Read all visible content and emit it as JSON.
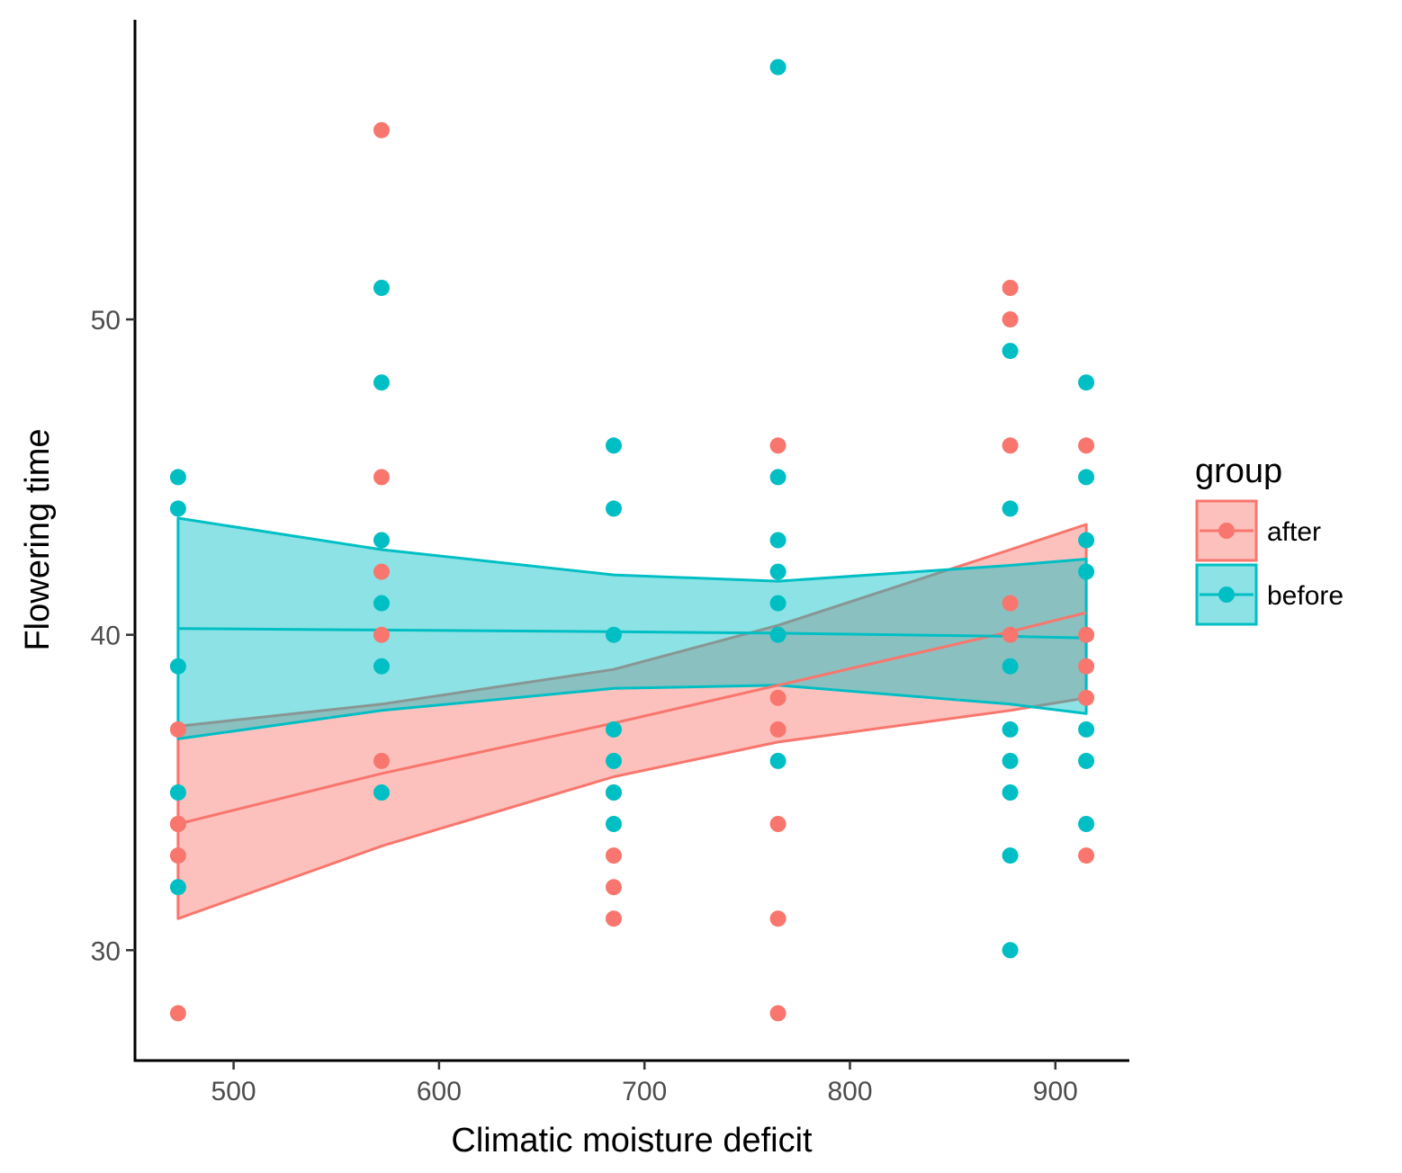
{
  "chart_data": {
    "type": "scatter",
    "title": "",
    "xlabel": "Climatic moisture deficit",
    "ylabel": "Flowering time",
    "xlim": [
      452,
      936
    ],
    "ylim": [
      26.5,
      59.5
    ],
    "x_ticks": [
      500,
      600,
      700,
      800,
      900
    ],
    "y_ticks": [
      30,
      40,
      50
    ],
    "legend": {
      "title": "group",
      "position": "right",
      "entries": [
        "after",
        "before"
      ]
    },
    "series": [
      {
        "name": "after",
        "color": "#F8766D",
        "points": [
          [
            473,
            37
          ],
          [
            473,
            34
          ],
          [
            473,
            34
          ],
          [
            473,
            33
          ],
          [
            473,
            28
          ],
          [
            572,
            56
          ],
          [
            572,
            45
          ],
          [
            572,
            42
          ],
          [
            572,
            40
          ],
          [
            572,
            36
          ],
          [
            685,
            35
          ],
          [
            685,
            33
          ],
          [
            685,
            32
          ],
          [
            685,
            31
          ],
          [
            765,
            46
          ],
          [
            765,
            38
          ],
          [
            765,
            37
          ],
          [
            765,
            34
          ],
          [
            765,
            31
          ],
          [
            765,
            28
          ],
          [
            878,
            51
          ],
          [
            878,
            50
          ],
          [
            878,
            46
          ],
          [
            878,
            41
          ],
          [
            878,
            40
          ],
          [
            915,
            46
          ],
          [
            915,
            40
          ],
          [
            915,
            39
          ],
          [
            915,
            38
          ],
          [
            915,
            33
          ]
        ],
        "fit": [
          [
            473,
            34.0
          ],
          [
            572,
            35.6
          ],
          [
            685,
            37.2
          ],
          [
            765,
            38.4
          ],
          [
            878,
            40.1
          ],
          [
            915,
            40.7
          ]
        ],
        "ribbon_upper": [
          [
            473,
            37.1
          ],
          [
            572,
            37.8
          ],
          [
            685,
            38.9
          ],
          [
            765,
            40.3
          ],
          [
            878,
            42.7
          ],
          [
            915,
            43.5
          ]
        ],
        "ribbon_lower": [
          [
            473,
            31.0
          ],
          [
            572,
            33.3
          ],
          [
            685,
            35.5
          ],
          [
            765,
            36.6
          ],
          [
            878,
            37.6
          ],
          [
            915,
            38.0
          ]
        ]
      },
      {
        "name": "before",
        "color": "#00BFC4",
        "points": [
          [
            473,
            45
          ],
          [
            473,
            44
          ],
          [
            473,
            39
          ],
          [
            473,
            35
          ],
          [
            473,
            32
          ],
          [
            572,
            51
          ],
          [
            572,
            48
          ],
          [
            572,
            43
          ],
          [
            572,
            41
          ],
          [
            572,
            39
          ],
          [
            572,
            35
          ],
          [
            685,
            46
          ],
          [
            685,
            44
          ],
          [
            685,
            40
          ],
          [
            685,
            37
          ],
          [
            685,
            36
          ],
          [
            685,
            35
          ],
          [
            685,
            34
          ],
          [
            765,
            58
          ],
          [
            765,
            45
          ],
          [
            765,
            43
          ],
          [
            765,
            42
          ],
          [
            765,
            41
          ],
          [
            765,
            40
          ],
          [
            765,
            36
          ],
          [
            878,
            49
          ],
          [
            878,
            44
          ],
          [
            878,
            39
          ],
          [
            878,
            37
          ],
          [
            878,
            36
          ],
          [
            878,
            35
          ],
          [
            878,
            33
          ],
          [
            878,
            30
          ],
          [
            915,
            48
          ],
          [
            915,
            45
          ],
          [
            915,
            43
          ],
          [
            915,
            42
          ],
          [
            915,
            37
          ],
          [
            915,
            36
          ],
          [
            915,
            34
          ]
        ],
        "fit": [
          [
            473,
            40.2
          ],
          [
            572,
            40.15
          ],
          [
            685,
            40.1
          ],
          [
            765,
            40.05
          ],
          [
            878,
            39.95
          ],
          [
            915,
            39.9
          ]
        ],
        "ribbon_upper": [
          [
            473,
            43.7
          ],
          [
            572,
            42.7
          ],
          [
            685,
            41.9
          ],
          [
            765,
            41.7
          ],
          [
            878,
            42.2
          ],
          [
            915,
            42.4
          ]
        ],
        "ribbon_lower": [
          [
            473,
            36.7
          ],
          [
            572,
            37.6
          ],
          [
            685,
            38.3
          ],
          [
            765,
            38.4
          ],
          [
            878,
            37.8
          ],
          [
            915,
            37.5
          ]
        ]
      }
    ]
  }
}
